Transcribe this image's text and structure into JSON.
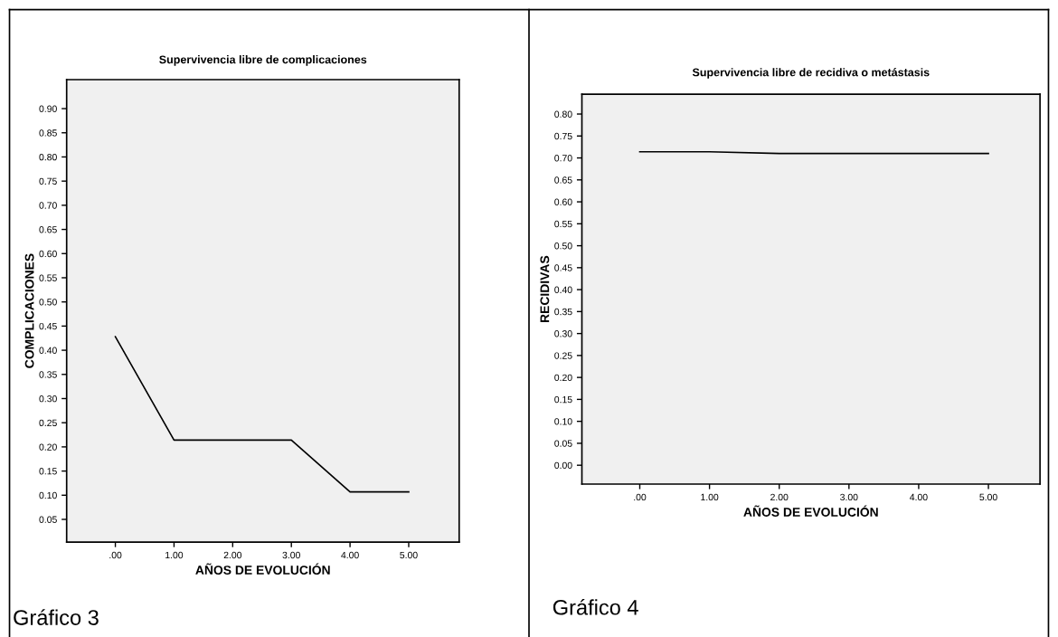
{
  "chart_data": [
    {
      "type": "line",
      "title": "Supervivencia libre de complicaciones",
      "xlabel": "AÑOS DE EVOLUCIÓN",
      "ylabel": "COMPLICACIONES",
      "x": [
        0,
        1,
        2,
        3,
        4,
        5
      ],
      "series": [
        {
          "color": "#000000",
          "values": [
            0.428,
            0.214,
            0.214,
            0.214,
            0.107,
            0.107
          ]
        }
      ],
      "xlim": [
        -0.83,
        5.86
      ],
      "xticks": [
        {
          "value": 0,
          "label": ".00"
        },
        {
          "value": 1,
          "label": "1.00"
        },
        {
          "value": 2,
          "label": "2.00"
        },
        {
          "value": 3,
          "label": "3.00"
        },
        {
          "value": 4,
          "label": "4.00"
        },
        {
          "value": 5,
          "label": "5.00"
        }
      ],
      "ylim": [
        0.003,
        0.96
      ],
      "yticks": [
        {
          "value": 0.05,
          "label": "0.05"
        },
        {
          "value": 0.1,
          "label": "0.10"
        },
        {
          "value": 0.15,
          "label": "0.15"
        },
        {
          "value": 0.2,
          "label": "0.20"
        },
        {
          "value": 0.25,
          "label": "0.25"
        },
        {
          "value": 0.3,
          "label": "0.30"
        },
        {
          "value": 0.35,
          "label": "0.35"
        },
        {
          "value": 0.4,
          "label": "0.40"
        },
        {
          "value": 0.45,
          "label": "0.45"
        },
        {
          "value": 0.5,
          "label": "0.50"
        },
        {
          "value": 0.55,
          "label": "0.55"
        },
        {
          "value": 0.6,
          "label": "0.60"
        },
        {
          "value": 0.65,
          "label": "0.65"
        },
        {
          "value": 0.7,
          "label": "0.70"
        },
        {
          "value": 0.75,
          "label": "0.75"
        },
        {
          "value": 0.8,
          "label": "0.80"
        },
        {
          "value": 0.85,
          "label": "0.85"
        },
        {
          "value": 0.9,
          "label": "0.90"
        }
      ],
      "grid": false,
      "marker": "none",
      "line_style": "solid",
      "annotations": [
        "Gráfico 3"
      ]
    },
    {
      "type": "line",
      "title": "Supervivencia libre de recidiva o metástasis",
      "xlabel": "AÑOS DE EVOLUCIÓN",
      "ylabel": "RECIDIVAS",
      "x": [
        0,
        1,
        2,
        3,
        4,
        5
      ],
      "series": [
        {
          "color": "#000000",
          "values": [
            0.714,
            0.714,
            0.71,
            0.71,
            0.71,
            0.71
          ]
        }
      ],
      "xlim": [
        -0.83,
        5.74
      ],
      "xticks": [
        {
          "value": 0,
          "label": ".00"
        },
        {
          "value": 1,
          "label": "1.00"
        },
        {
          "value": 2,
          "label": "2.00"
        },
        {
          "value": 3,
          "label": "3.00"
        },
        {
          "value": 4,
          "label": "4.00"
        },
        {
          "value": 5,
          "label": "5.00"
        }
      ],
      "ylim": [
        -0.043,
        0.845
      ],
      "yticks": [
        {
          "value": 0,
          "label": "0.00"
        },
        {
          "value": 0.05,
          "label": "0.05"
        },
        {
          "value": 0.1,
          "label": "0.10"
        },
        {
          "value": 0.15,
          "label": "0.15"
        },
        {
          "value": 0.2,
          "label": "0.20"
        },
        {
          "value": 0.25,
          "label": "0.25"
        },
        {
          "value": 0.3,
          "label": "0.30"
        },
        {
          "value": 0.35,
          "label": "0.35"
        },
        {
          "value": 0.4,
          "label": "0.40"
        },
        {
          "value": 0.45,
          "label": "0.45"
        },
        {
          "value": 0.5,
          "label": "0.50"
        },
        {
          "value": 0.55,
          "label": "0.55"
        },
        {
          "value": 0.6,
          "label": "0.60"
        },
        {
          "value": 0.65,
          "label": "0.65"
        },
        {
          "value": 0.7,
          "label": "0.70"
        },
        {
          "value": 0.75,
          "label": "0.75"
        },
        {
          "value": 0.8,
          "label": "0.80"
        }
      ],
      "grid": false,
      "marker": "none",
      "line_style": "solid",
      "annotations": [
        "Gráfico 4"
      ]
    }
  ]
}
